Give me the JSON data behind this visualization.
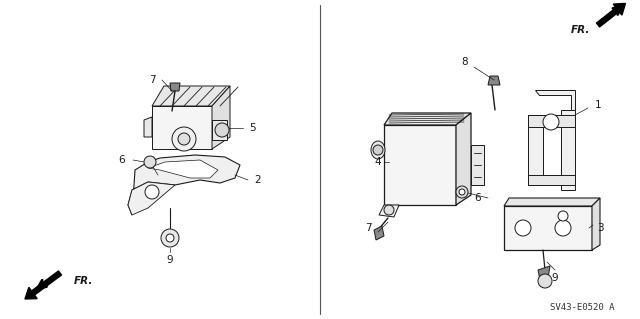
{
  "bg_color": "#ffffff",
  "line_color": "#1a1a1a",
  "diagram_code": "SV43-E0520 A",
  "figsize": [
    6.4,
    3.19
  ],
  "dpi": 100
}
